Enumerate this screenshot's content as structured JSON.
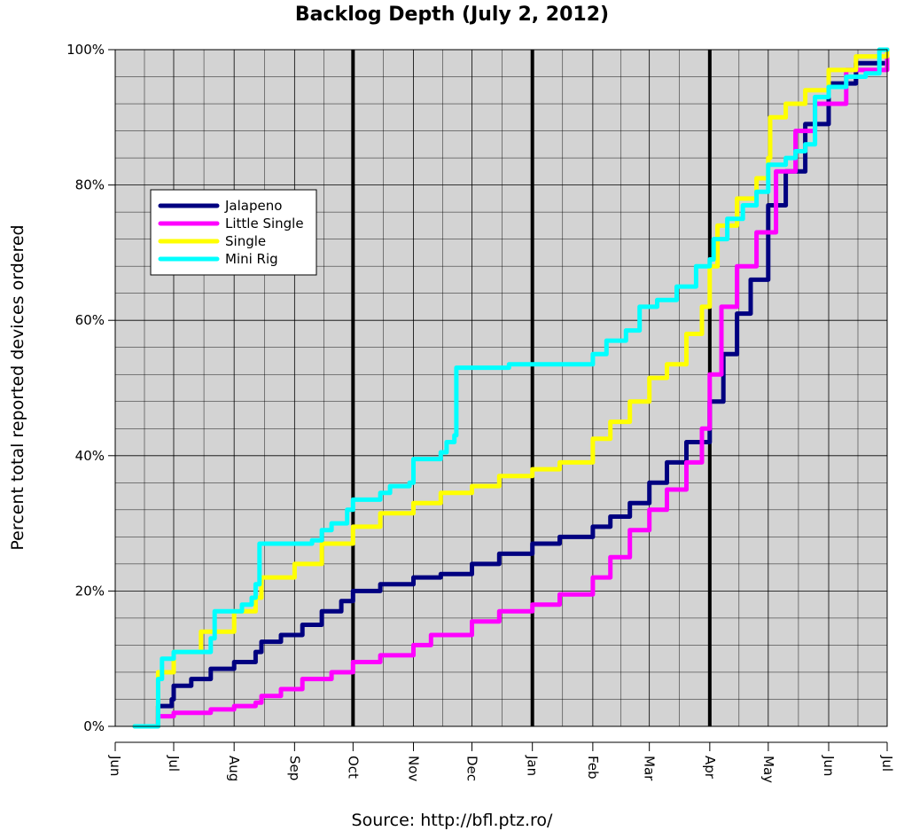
{
  "chart_data": {
    "type": "line",
    "title": "Backlog Depth (July 2, 2012)",
    "ylabel": "Percent total reported devices ordered",
    "xlabel": "",
    "source": "Source: http://bfl.ptz.ro/",
    "x_range": [
      "2011-06-01",
      "2012-07-01"
    ],
    "ylim": [
      0,
      100
    ],
    "y_ticks": [
      0,
      20,
      40,
      60,
      80,
      100
    ],
    "y_tick_labels": [
      "0%",
      "20%",
      "40%",
      "60%",
      "80%",
      "100%"
    ],
    "x_ticks": [
      "2011-06-01",
      "2011-07-01",
      "2011-08-01",
      "2011-09-01",
      "2011-10-01",
      "2011-11-01",
      "2011-12-01",
      "2012-01-01",
      "2012-02-01",
      "2012-03-01",
      "2012-04-01",
      "2012-05-01",
      "2012-06-01",
      "2012-07-01"
    ],
    "x_tick_labels": [
      "Jun",
      "Jul",
      "Aug",
      "Sep",
      "Oct",
      "Nov",
      "Dec",
      "Jan",
      "Feb",
      "Mar",
      "Apr",
      "May",
      "Jun",
      "Jul"
    ],
    "vertical_markers": [
      "2011-10-01",
      "2012-01-01",
      "2012-04-01"
    ],
    "grid": true,
    "legend_placement": "upper-left",
    "background_color": "#d3d3d3",
    "series": [
      {
        "name": "Jalapeno",
        "color": "#000080",
        "points": [
          [
            "2011-06-11",
            0
          ],
          [
            "2011-06-22",
            0
          ],
          [
            "2011-06-23",
            3
          ],
          [
            "2011-06-30",
            4
          ],
          [
            "2011-07-01",
            6
          ],
          [
            "2011-07-10",
            7
          ],
          [
            "2011-07-20",
            8.5
          ],
          [
            "2011-08-01",
            9.5
          ],
          [
            "2011-08-12",
            11
          ],
          [
            "2011-08-15",
            12.5
          ],
          [
            "2011-08-25",
            13.5
          ],
          [
            "2011-09-05",
            15
          ],
          [
            "2011-09-15",
            17
          ],
          [
            "2011-09-25",
            18.5
          ],
          [
            "2011-10-01",
            20
          ],
          [
            "2011-10-15",
            21
          ],
          [
            "2011-11-01",
            22
          ],
          [
            "2011-11-15",
            22.5
          ],
          [
            "2011-12-01",
            24
          ],
          [
            "2011-12-15",
            25.5
          ],
          [
            "2012-01-01",
            27
          ],
          [
            "2012-01-15",
            28
          ],
          [
            "2012-02-01",
            29.5
          ],
          [
            "2012-02-10",
            31
          ],
          [
            "2012-02-20",
            33
          ],
          [
            "2012-03-01",
            36
          ],
          [
            "2012-03-10",
            39
          ],
          [
            "2012-03-20",
            42
          ],
          [
            "2012-04-01",
            48
          ],
          [
            "2012-04-08",
            55
          ],
          [
            "2012-04-15",
            61
          ],
          [
            "2012-04-22",
            66
          ],
          [
            "2012-05-01",
            77
          ],
          [
            "2012-05-10",
            82
          ],
          [
            "2012-05-20",
            89
          ],
          [
            "2012-06-01",
            95
          ],
          [
            "2012-06-15",
            98
          ],
          [
            "2012-07-01",
            100
          ]
        ]
      },
      {
        "name": "Little Single",
        "color": "#ff00ff",
        "points": [
          [
            "2011-06-22",
            0
          ],
          [
            "2011-06-23",
            1.5
          ],
          [
            "2011-07-01",
            2
          ],
          [
            "2011-07-20",
            2.5
          ],
          [
            "2011-08-01",
            3
          ],
          [
            "2011-08-12",
            3.5
          ],
          [
            "2011-08-15",
            4.5
          ],
          [
            "2011-08-25",
            5.5
          ],
          [
            "2011-09-05",
            7
          ],
          [
            "2011-09-20",
            8
          ],
          [
            "2011-10-01",
            9.5
          ],
          [
            "2011-10-15",
            10.5
          ],
          [
            "2011-11-01",
            12
          ],
          [
            "2011-11-10",
            13.5
          ],
          [
            "2011-12-01",
            15.5
          ],
          [
            "2011-12-15",
            17
          ],
          [
            "2012-01-01",
            18
          ],
          [
            "2012-01-15",
            19.5
          ],
          [
            "2012-02-01",
            22
          ],
          [
            "2012-02-10",
            25
          ],
          [
            "2012-02-20",
            29
          ],
          [
            "2012-03-01",
            32
          ],
          [
            "2012-03-10",
            35
          ],
          [
            "2012-03-20",
            39
          ],
          [
            "2012-03-28",
            44
          ],
          [
            "2012-04-01",
            52
          ],
          [
            "2012-04-07",
            62
          ],
          [
            "2012-04-15",
            68
          ],
          [
            "2012-04-25",
            73
          ],
          [
            "2012-05-05",
            82
          ],
          [
            "2012-05-15",
            88
          ],
          [
            "2012-05-25",
            92
          ],
          [
            "2012-06-10",
            97
          ],
          [
            "2012-07-01",
            100
          ]
        ]
      },
      {
        "name": "Single",
        "color": "#ffff00",
        "points": [
          [
            "2011-06-11",
            0
          ],
          [
            "2011-06-22",
            0
          ],
          [
            "2011-06-23",
            8
          ],
          [
            "2011-07-01",
            11
          ],
          [
            "2011-07-15",
            14
          ],
          [
            "2011-08-01",
            17
          ],
          [
            "2011-08-12",
            19
          ],
          [
            "2011-08-15",
            22
          ],
          [
            "2011-09-01",
            24
          ],
          [
            "2011-09-15",
            27
          ],
          [
            "2011-10-01",
            29.5
          ],
          [
            "2011-10-15",
            31.5
          ],
          [
            "2011-11-01",
            33
          ],
          [
            "2011-11-15",
            34.5
          ],
          [
            "2011-12-01",
            35.5
          ],
          [
            "2011-12-15",
            37
          ],
          [
            "2012-01-01",
            38
          ],
          [
            "2012-01-15",
            39
          ],
          [
            "2012-02-01",
            42.5
          ],
          [
            "2012-02-10",
            45
          ],
          [
            "2012-02-20",
            48
          ],
          [
            "2012-03-01",
            51.5
          ],
          [
            "2012-03-10",
            53.5
          ],
          [
            "2012-03-20",
            58
          ],
          [
            "2012-03-28",
            62
          ],
          [
            "2012-04-01",
            68
          ],
          [
            "2012-04-05",
            74
          ],
          [
            "2012-04-15",
            78
          ],
          [
            "2012-04-25",
            81
          ],
          [
            "2012-05-01",
            84
          ],
          [
            "2012-05-02",
            90
          ],
          [
            "2012-05-10",
            92
          ],
          [
            "2012-05-20",
            94
          ],
          [
            "2012-06-01",
            97
          ],
          [
            "2012-06-15",
            99
          ],
          [
            "2012-07-01",
            100
          ]
        ]
      },
      {
        "name": "Mini Rig",
        "color": "#00ffff",
        "points": [
          [
            "2011-06-11",
            0
          ],
          [
            "2011-06-22",
            0
          ],
          [
            "2011-06-23",
            7
          ],
          [
            "2011-06-25",
            10
          ],
          [
            "2011-07-01",
            11
          ],
          [
            "2011-07-18",
            11
          ],
          [
            "2011-07-20",
            13
          ],
          [
            "2011-07-22",
            17
          ],
          [
            "2011-08-05",
            18
          ],
          [
            "2011-08-10",
            19
          ],
          [
            "2011-08-12",
            21
          ],
          [
            "2011-08-14",
            27
          ],
          [
            "2011-09-10",
            27.5
          ],
          [
            "2011-09-15",
            29
          ],
          [
            "2011-09-20",
            30
          ],
          [
            "2011-09-28",
            32
          ],
          [
            "2011-10-01",
            33.5
          ],
          [
            "2011-10-15",
            34.5
          ],
          [
            "2011-10-20",
            35.5
          ],
          [
            "2011-10-30",
            36
          ],
          [
            "2011-11-01",
            39.5
          ],
          [
            "2011-11-15",
            40.5
          ],
          [
            "2011-11-18",
            42
          ],
          [
            "2011-11-22",
            43
          ],
          [
            "2011-11-23",
            53
          ],
          [
            "2011-12-20",
            53.5
          ],
          [
            "2012-01-01",
            53.5
          ],
          [
            "2012-01-28",
            53.5
          ],
          [
            "2012-02-01",
            55
          ],
          [
            "2012-02-08",
            57
          ],
          [
            "2012-02-18",
            58.5
          ],
          [
            "2012-02-25",
            62
          ],
          [
            "2012-03-05",
            63
          ],
          [
            "2012-03-15",
            65
          ],
          [
            "2012-03-25",
            68
          ],
          [
            "2012-04-01",
            69
          ],
          [
            "2012-04-03",
            72
          ],
          [
            "2012-04-10",
            75
          ],
          [
            "2012-04-18",
            77
          ],
          [
            "2012-04-25",
            79
          ],
          [
            "2012-05-01",
            83
          ],
          [
            "2012-05-10",
            84
          ],
          [
            "2012-05-15",
            85
          ],
          [
            "2012-05-20",
            86
          ],
          [
            "2012-05-25",
            93
          ],
          [
            "2012-06-01",
            94.5
          ],
          [
            "2012-06-10",
            96
          ],
          [
            "2012-06-20",
            96.5
          ],
          [
            "2012-06-26",
            96.5
          ],
          [
            "2012-06-27",
            100
          ],
          [
            "2012-07-01",
            100
          ]
        ]
      }
    ]
  }
}
